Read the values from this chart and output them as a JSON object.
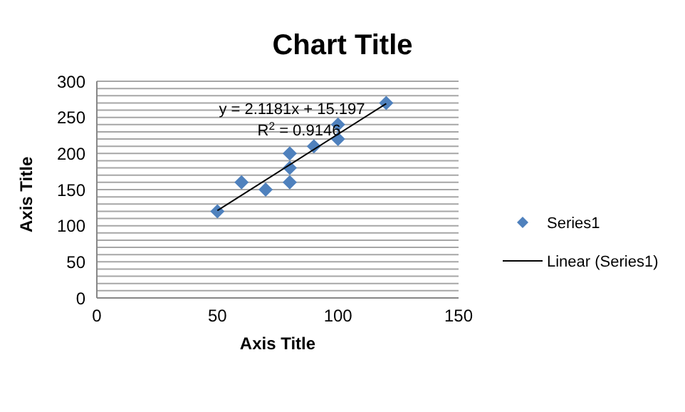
{
  "chart_data": {
    "type": "scatter",
    "title": "Chart Title",
    "xlabel": "Axis Title",
    "ylabel": "Axis Title",
    "x": [
      50,
      60,
      70,
      80,
      80,
      80,
      90,
      100,
      100,
      120
    ],
    "series": [
      {
        "name": "Series1",
        "color": "#4f81bd",
        "marker": "diamond",
        "values": [
          120,
          160,
          150,
          160,
          180,
          200,
          210,
          220,
          240,
          270
        ]
      },
      {
        "name": "Linear (Series1)",
        "type": "line",
        "color": "#000000",
        "marker": "none",
        "x": [
          50,
          120
        ],
        "values": [
          121,
          269
        ]
      }
    ],
    "annotations": [
      "y = 2.1181x + 15.197",
      "R$^{2}$ = 0.9146"
    ],
    "xlim": [
      0,
      150
    ],
    "xticks": [
      0,
      50,
      100,
      150
    ],
    "ylim": [
      0,
      300
    ],
    "yticks": [
      0,
      {
        "value": 10,
        "label": null
      },
      {
        "value": 20,
        "label": null
      },
      {
        "value": 30,
        "label": null
      },
      {
        "value": 40,
        "label": null
      },
      50,
      {
        "value": 60,
        "label": null
      },
      {
        "value": 70,
        "label": null
      },
      {
        "value": 80,
        "label": null
      },
      {
        "value": 90,
        "label": null
      },
      100,
      {
        "value": 110,
        "label": null
      },
      {
        "value": 120,
        "label": null
      },
      {
        "value": 130,
        "label": null
      },
      {
        "value": 140,
        "label": null
      },
      150,
      {
        "value": 160,
        "label": null
      },
      {
        "value": 170,
        "label": null
      },
      {
        "value": 180,
        "label": null
      },
      {
        "value": 190,
        "label": null
      },
      200,
      {
        "value": 210,
        "label": null
      },
      {
        "value": 220,
        "label": null
      },
      {
        "value": 230,
        "label": null
      },
      {
        "value": 240,
        "label": null
      },
      250,
      {
        "value": 260,
        "label": null
      },
      {
        "value": 270,
        "label": null
      },
      {
        "value": 280,
        "label": null
      },
      {
        "value": 290,
        "label": null
      },
      300
    ],
    "grid": "y",
    "legend": "right"
  }
}
